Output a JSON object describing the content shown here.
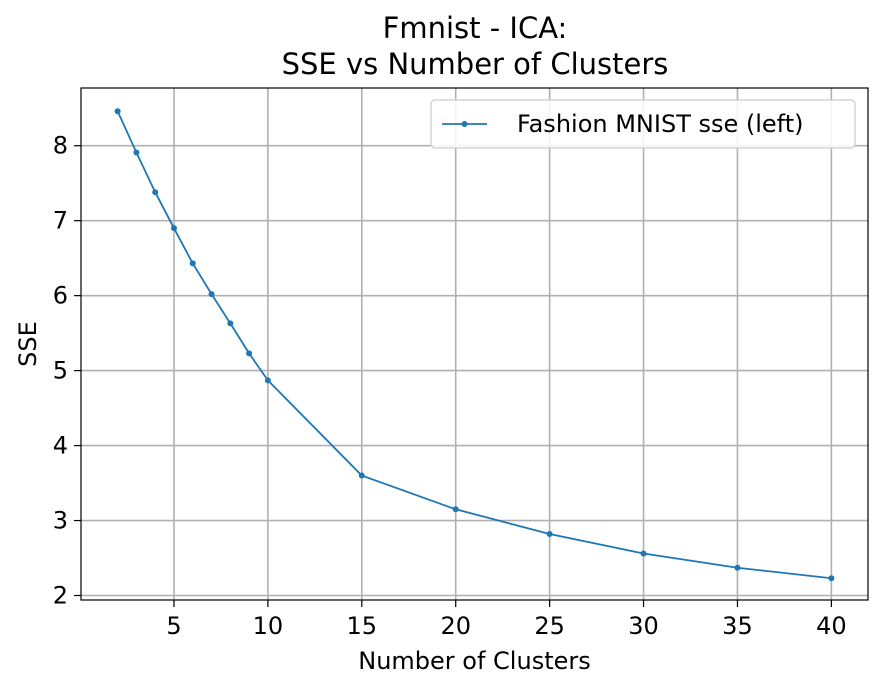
{
  "chart_data": {
    "type": "line",
    "title": [
      "Fmnist - ICA:",
      "SSE vs Number of Clusters"
    ],
    "xlabel": "Number of Clusters",
    "ylabel": "SSE",
    "xlim": [
      0.05,
      41.95
    ],
    "ylim": [
      1.94,
      8.77
    ],
    "x_ticks": [
      5,
      10,
      15,
      20,
      25,
      30,
      35,
      40
    ],
    "y_ticks": [
      2,
      3,
      4,
      5,
      6,
      7,
      8
    ],
    "grid": true,
    "legend_position": "top-right",
    "series": [
      {
        "name": "Fashion MNIST sse (left)",
        "color": "#1f77b4",
        "x": [
          2,
          3,
          4,
          5,
          6,
          7,
          8,
          9,
          10,
          15,
          20,
          25,
          30,
          35,
          40
        ],
        "y": [
          8.46,
          7.91,
          7.38,
          6.9,
          6.43,
          6.02,
          5.63,
          5.23,
          4.87,
          3.6,
          3.15,
          2.82,
          2.56,
          2.37,
          2.23
        ]
      }
    ]
  }
}
